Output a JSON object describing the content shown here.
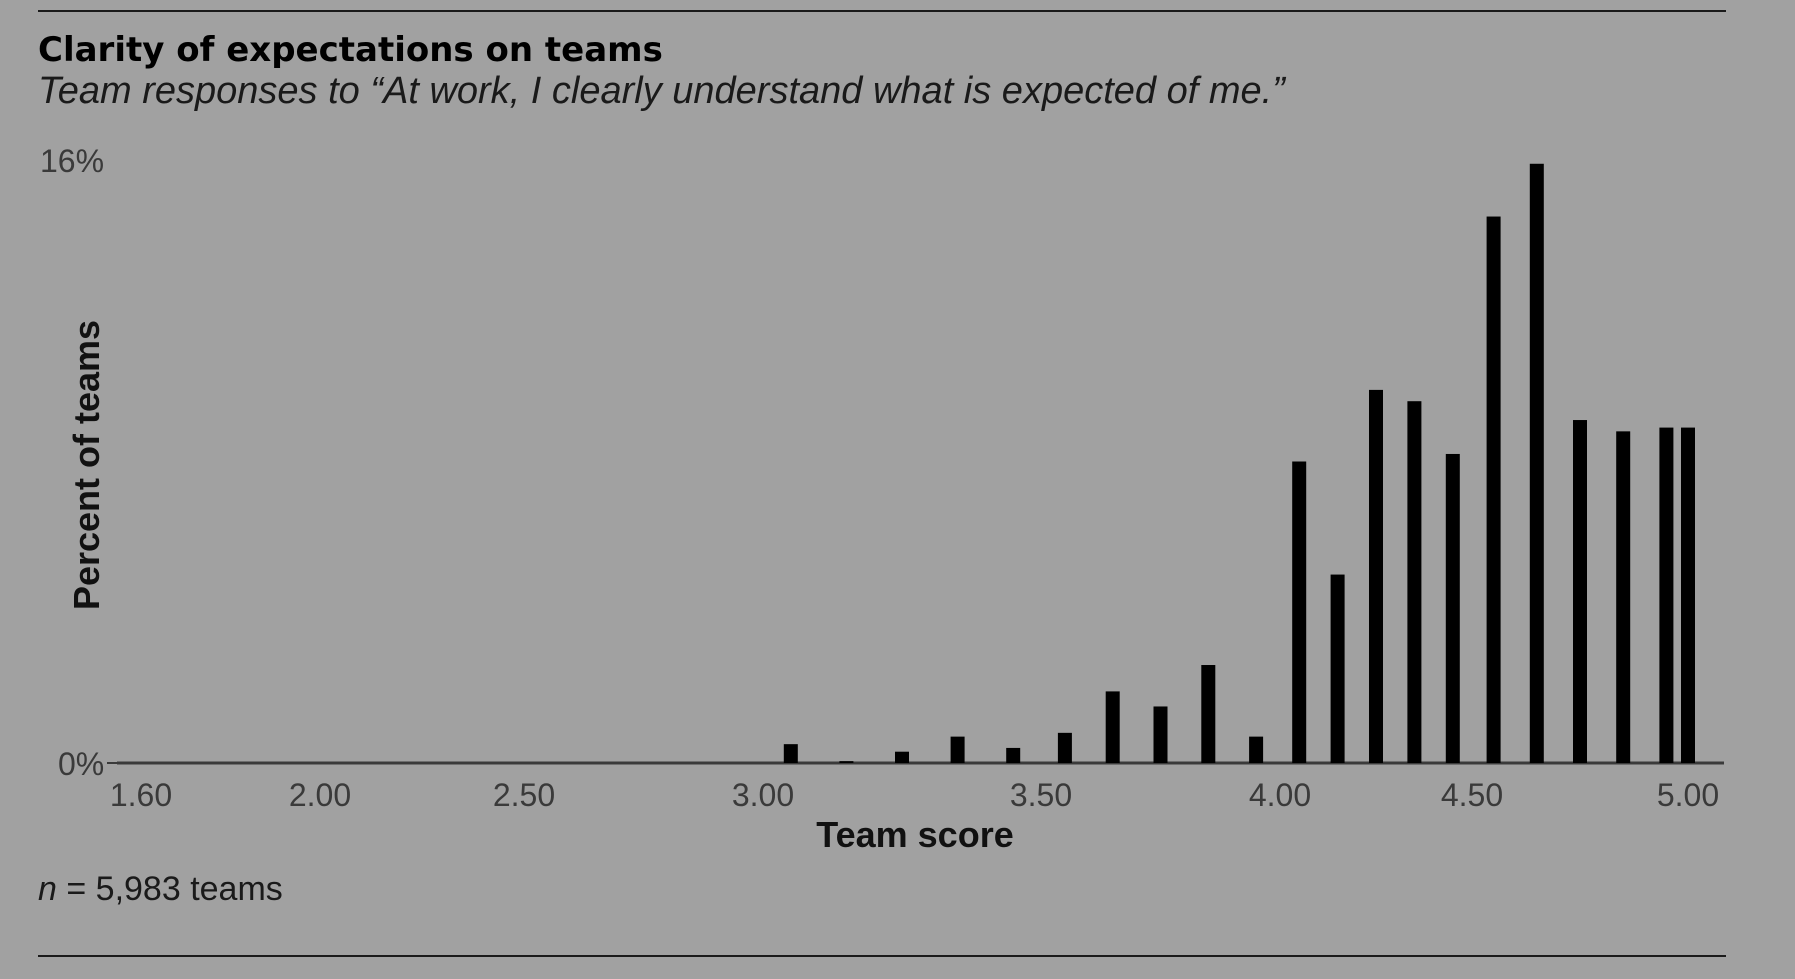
{
  "header": {
    "title": "Clarity of expectations on teams",
    "subtitle": "Team responses to “At work, I clearly understand what is expected of me.”"
  },
  "footer": {
    "n_label": "n",
    "n_text": " = 5,983 teams"
  },
  "chart_data": {
    "type": "bar",
    "xlabel": "Team score",
    "ylabel": "Percent of teams",
    "y_ticks": [
      "16%",
      "0%"
    ],
    "ylim": [
      0,
      16
    ],
    "xlim": [
      1.6,
      5.0
    ],
    "x_tick_labels": [
      "1.60",
      "2.00",
      "2.50",
      "3.00",
      "3.50",
      "4.00",
      "4.50",
      "5.00"
    ],
    "x_tick_values": [
      1.6,
      2.0,
      2.5,
      3.0,
      3.5,
      4.0,
      4.5,
      5.0
    ],
    "x": [
      3.05,
      3.15,
      3.25,
      3.35,
      3.45,
      3.55,
      3.65,
      3.75,
      3.85,
      3.95,
      4.05,
      4.15,
      4.25,
      4.35,
      4.45,
      4.55,
      4.65,
      4.75,
      4.85,
      4.95,
      5.0
    ],
    "values": [
      0.5,
      0.05,
      0.3,
      0.7,
      0.4,
      0.8,
      1.9,
      1.5,
      2.6,
      0.7,
      8.0,
      5.0,
      9.9,
      9.6,
      8.2,
      14.5,
      15.9,
      9.1,
      8.8,
      8.9,
      8.9
    ],
    "bar_color": "#000000",
    "axis_color": "#3a3a3a",
    "grid": false,
    "legend": "none"
  }
}
